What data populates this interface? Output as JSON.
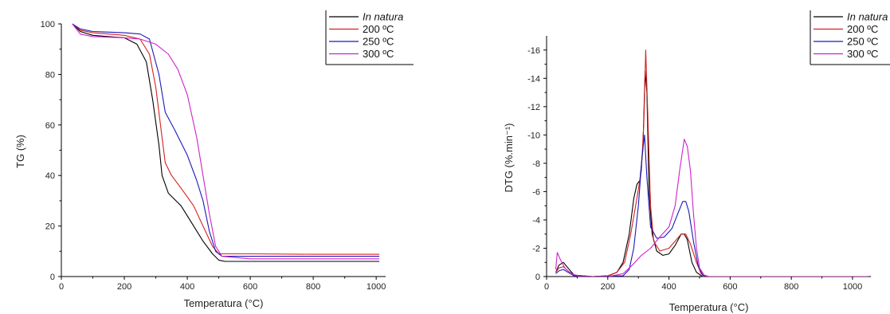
{
  "chart_data": [
    {
      "type": "line",
      "title": "",
      "xlabel": "Temperatura (°C)",
      "ylabel": "TG (%)",
      "xlim": [
        0,
        1030
      ],
      "ylim": [
        0,
        100
      ],
      "xticks": [
        0,
        200,
        400,
        600,
        800,
        1000
      ],
      "yticks": [
        0,
        20,
        40,
        60,
        80,
        100
      ],
      "legend_position": "top-right",
      "series": [
        {
          "name": "In natura",
          "italic": true,
          "color": "#000000",
          "points": [
            [
              35,
              100
            ],
            [
              60,
              97
            ],
            [
              100,
              95.5
            ],
            [
              150,
              95
            ],
            [
              200,
              94.5
            ],
            [
              240,
              92
            ],
            [
              270,
              85
            ],
            [
              290,
              70
            ],
            [
              310,
              52
            ],
            [
              320,
              40
            ],
            [
              340,
              33
            ],
            [
              380,
              28
            ],
            [
              420,
              20
            ],
            [
              450,
              14
            ],
            [
              480,
              9
            ],
            [
              500,
              6.5
            ],
            [
              520,
              6
            ],
            [
              600,
              6
            ],
            [
              800,
              6
            ],
            [
              1010,
              6
            ]
          ]
        },
        {
          "name": "200 ºC",
          "italic": false,
          "color": "#d62020",
          "points": [
            [
              35,
              100
            ],
            [
              60,
              97.5
            ],
            [
              100,
              96.5
            ],
            [
              150,
              96
            ],
            [
              200,
              95.5
            ],
            [
              250,
              94
            ],
            [
              280,
              88
            ],
            [
              300,
              75
            ],
            [
              320,
              55
            ],
            [
              330,
              45
            ],
            [
              350,
              40
            ],
            [
              380,
              35
            ],
            [
              420,
              28
            ],
            [
              450,
              20
            ],
            [
              480,
              12
            ],
            [
              500,
              9
            ],
            [
              600,
              9
            ],
            [
              800,
              8.8
            ],
            [
              1010,
              8.8
            ]
          ]
        },
        {
          "name": "250 ºC",
          "italic": false,
          "color": "#1a1ab8",
          "points": [
            [
              35,
              100
            ],
            [
              60,
              98
            ],
            [
              100,
              97
            ],
            [
              200,
              96.5
            ],
            [
              250,
              96
            ],
            [
              280,
              94
            ],
            [
              310,
              80
            ],
            [
              330,
              65
            ],
            [
              360,
              58
            ],
            [
              400,
              48
            ],
            [
              430,
              38
            ],
            [
              450,
              30
            ],
            [
              470,
              18
            ],
            [
              490,
              10
            ],
            [
              510,
              8
            ],
            [
              600,
              8
            ],
            [
              800,
              8
            ],
            [
              1010,
              8
            ]
          ]
        },
        {
          "name": "300 ºC",
          "italic": false,
          "color": "#cc22cc",
          "points": [
            [
              35,
              100
            ],
            [
              60,
              96
            ],
            [
              100,
              95
            ],
            [
              200,
              94.5
            ],
            [
              250,
              94
            ],
            [
              300,
              92
            ],
            [
              340,
              88
            ],
            [
              370,
              82
            ],
            [
              400,
              72
            ],
            [
              430,
              55
            ],
            [
              450,
              40
            ],
            [
              470,
              25
            ],
            [
              490,
              12
            ],
            [
              510,
              8
            ],
            [
              600,
              7
            ],
            [
              800,
              7
            ],
            [
              1010,
              7
            ]
          ]
        }
      ]
    },
    {
      "type": "line",
      "title": "",
      "xlabel": "Temperatura (°C)",
      "ylabel": "DTG (%.min⁻¹)",
      "xlim": [
        0,
        1060
      ],
      "ylim": [
        0,
        -17
      ],
      "xticks": [
        0,
        200,
        400,
        600,
        800,
        1000
      ],
      "yticks": [
        0,
        -2,
        -4,
        -6,
        -8,
        -10,
        -12,
        -14,
        -16
      ],
      "legend_position": "top-right",
      "series": [
        {
          "name": "In natura",
          "italic": true,
          "color": "#000000",
          "points": [
            [
              30,
              -0.3
            ],
            [
              40,
              -0.8
            ],
            [
              55,
              -1.0
            ],
            [
              70,
              -0.6
            ],
            [
              90,
              -0.1
            ],
            [
              150,
              0
            ],
            [
              200,
              -0.05
            ],
            [
              230,
              -0.3
            ],
            [
              250,
              -1
            ],
            [
              270,
              -3
            ],
            [
              285,
              -5.5
            ],
            [
              295,
              -6.5
            ],
            [
              305,
              -6.8
            ],
            [
              315,
              -9
            ],
            [
              322,
              -14.5
            ],
            [
              328,
              -13
            ],
            [
              335,
              -6
            ],
            [
              345,
              -3
            ],
            [
              360,
              -1.8
            ],
            [
              380,
              -1.5
            ],
            [
              400,
              -1.6
            ],
            [
              420,
              -2.2
            ],
            [
              440,
              -3
            ],
            [
              450,
              -3
            ],
            [
              460,
              -2.6
            ],
            [
              475,
              -1
            ],
            [
              490,
              -0.3
            ],
            [
              510,
              0
            ],
            [
              1050,
              0
            ]
          ]
        },
        {
          "name": "200 ºC",
          "italic": false,
          "color": "#d62020",
          "points": [
            [
              30,
              -0.3
            ],
            [
              40,
              -0.6
            ],
            [
              55,
              -0.7
            ],
            [
              70,
              -0.4
            ],
            [
              90,
              -0.1
            ],
            [
              150,
              0
            ],
            [
              200,
              -0.05
            ],
            [
              230,
              -0.3
            ],
            [
              255,
              -1
            ],
            [
              275,
              -3
            ],
            [
              295,
              -5.5
            ],
            [
              310,
              -7.5
            ],
            [
              318,
              -11
            ],
            [
              324,
              -16
            ],
            [
              330,
              -12
            ],
            [
              340,
              -5
            ],
            [
              350,
              -2.5
            ],
            [
              370,
              -1.8
            ],
            [
              400,
              -2
            ],
            [
              420,
              -2.5
            ],
            [
              440,
              -3
            ],
            [
              455,
              -3
            ],
            [
              470,
              -2.3
            ],
            [
              490,
              -1
            ],
            [
              505,
              -0.2
            ],
            [
              520,
              0
            ],
            [
              1050,
              0
            ]
          ]
        },
        {
          "name": "250 ºC",
          "italic": false,
          "color": "#1a1ab8",
          "points": [
            [
              30,
              -0.2
            ],
            [
              40,
              -0.4
            ],
            [
              55,
              -0.5
            ],
            [
              70,
              -0.3
            ],
            [
              90,
              -0.05
            ],
            [
              150,
              0
            ],
            [
              250,
              -0.05
            ],
            [
              270,
              -0.5
            ],
            [
              285,
              -2
            ],
            [
              300,
              -5
            ],
            [
              312,
              -8.5
            ],
            [
              320,
              -10
            ],
            [
              328,
              -7
            ],
            [
              340,
              -3.5
            ],
            [
              360,
              -2.7
            ],
            [
              385,
              -2.8
            ],
            [
              410,
              -3.4
            ],
            [
              430,
              -4.5
            ],
            [
              445,
              -5.3
            ],
            [
              455,
              -5.3
            ],
            [
              465,
              -4.6
            ],
            [
              480,
              -2.5
            ],
            [
              495,
              -0.8
            ],
            [
              510,
              -0.1
            ],
            [
              530,
              0
            ],
            [
              1050,
              0
            ]
          ]
        },
        {
          "name": "300 ºC",
          "italic": false,
          "color": "#cc22cc",
          "points": [
            [
              30,
              -0.5
            ],
            [
              35,
              -1.7
            ],
            [
              45,
              -1.2
            ],
            [
              60,
              -0.6
            ],
            [
              80,
              -0.2
            ],
            [
              110,
              0
            ],
            [
              200,
              0
            ],
            [
              250,
              -0.2
            ],
            [
              280,
              -0.8
            ],
            [
              310,
              -1.5
            ],
            [
              340,
              -2
            ],
            [
              370,
              -2.8
            ],
            [
              400,
              -3.5
            ],
            [
              420,
              -5
            ],
            [
              435,
              -7.5
            ],
            [
              450,
              -9.7
            ],
            [
              460,
              -9.2
            ],
            [
              470,
              -7.5
            ],
            [
              480,
              -4.5
            ],
            [
              490,
              -2
            ],
            [
              500,
              -0.6
            ],
            [
              515,
              -0.1
            ],
            [
              530,
              0
            ],
            [
              1050,
              0
            ]
          ]
        }
      ]
    }
  ]
}
